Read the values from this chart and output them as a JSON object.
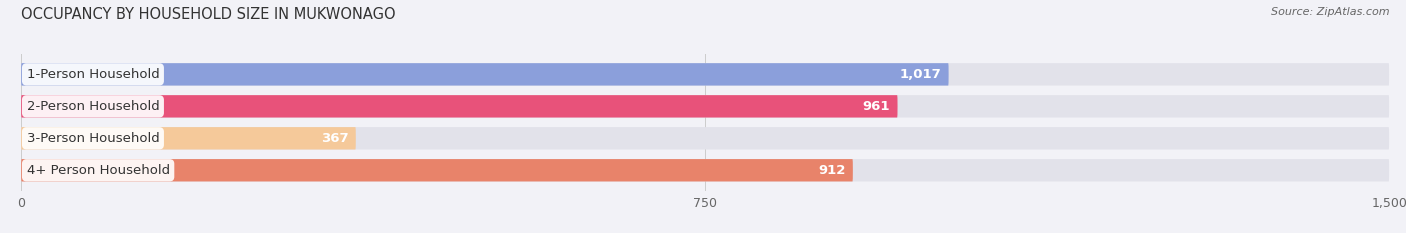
{
  "title": "OCCUPANCY BY HOUSEHOLD SIZE IN MUKWONAGO",
  "source": "Source: ZipAtlas.com",
  "categories": [
    "1-Person Household",
    "2-Person Household",
    "3-Person Household",
    "4+ Person Household"
  ],
  "values": [
    1017,
    961,
    367,
    912
  ],
  "bar_colors": [
    "#8b9fdb",
    "#e8527a",
    "#f5c99a",
    "#e8836a"
  ],
  "bar_bg_color": "#e2e2ea",
  "xlim": [
    0,
    1500
  ],
  "xticks": [
    0,
    750,
    1500
  ],
  "label_fontsize": 9.5,
  "value_fontsize": 9.5,
  "title_fontsize": 10.5,
  "background_color": "#f2f2f7"
}
